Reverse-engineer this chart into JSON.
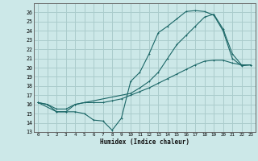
{
  "title": "",
  "xlabel": "Humidex (Indice chaleur)",
  "bg_color": "#cce8e8",
  "grid_color": "#aacccc",
  "line_color": "#1a6666",
  "xlim": [
    -0.5,
    23.5
  ],
  "ylim": [
    13,
    27
  ],
  "xticks": [
    0,
    1,
    2,
    3,
    4,
    5,
    6,
    7,
    8,
    9,
    10,
    11,
    12,
    13,
    14,
    15,
    16,
    17,
    18,
    19,
    20,
    21,
    22,
    23
  ],
  "yticks": [
    13,
    14,
    15,
    16,
    17,
    18,
    19,
    20,
    21,
    22,
    23,
    24,
    25,
    26
  ],
  "line1_x": [
    0,
    1,
    2,
    3,
    4,
    5,
    6,
    7,
    8,
    9,
    10,
    11,
    12,
    13,
    14,
    15,
    16,
    17,
    18,
    19,
    20,
    21,
    22,
    23
  ],
  "line1_y": [
    16.2,
    16.0,
    15.2,
    15.2,
    15.2,
    15.0,
    14.3,
    14.2,
    13.2,
    14.5,
    18.5,
    19.5,
    21.5,
    23.8,
    24.5,
    25.3,
    26.1,
    26.2,
    26.1,
    25.7,
    24.0,
    21.0,
    20.2,
    20.3
  ],
  "line2_x": [
    0,
    1,
    2,
    3,
    4,
    5,
    6,
    7,
    8,
    9,
    10,
    11,
    12,
    13,
    14,
    15,
    16,
    17,
    18,
    19,
    20,
    21,
    22,
    23
  ],
  "line2_y": [
    16.2,
    16.0,
    15.5,
    15.5,
    16.0,
    16.2,
    16.2,
    16.2,
    16.4,
    16.6,
    17.0,
    17.4,
    17.8,
    18.3,
    18.8,
    19.3,
    19.8,
    20.3,
    20.7,
    20.8,
    20.8,
    20.5,
    20.3,
    20.3
  ],
  "line3_x": [
    0,
    2,
    3,
    4,
    10,
    11,
    12,
    13,
    14,
    15,
    16,
    17,
    18,
    19,
    20,
    21,
    22,
    23
  ],
  "line3_y": [
    16.2,
    15.2,
    15.2,
    16.0,
    17.2,
    17.8,
    18.5,
    19.5,
    21.0,
    22.5,
    23.5,
    24.5,
    25.5,
    25.8,
    24.2,
    21.5,
    20.3,
    20.3
  ]
}
